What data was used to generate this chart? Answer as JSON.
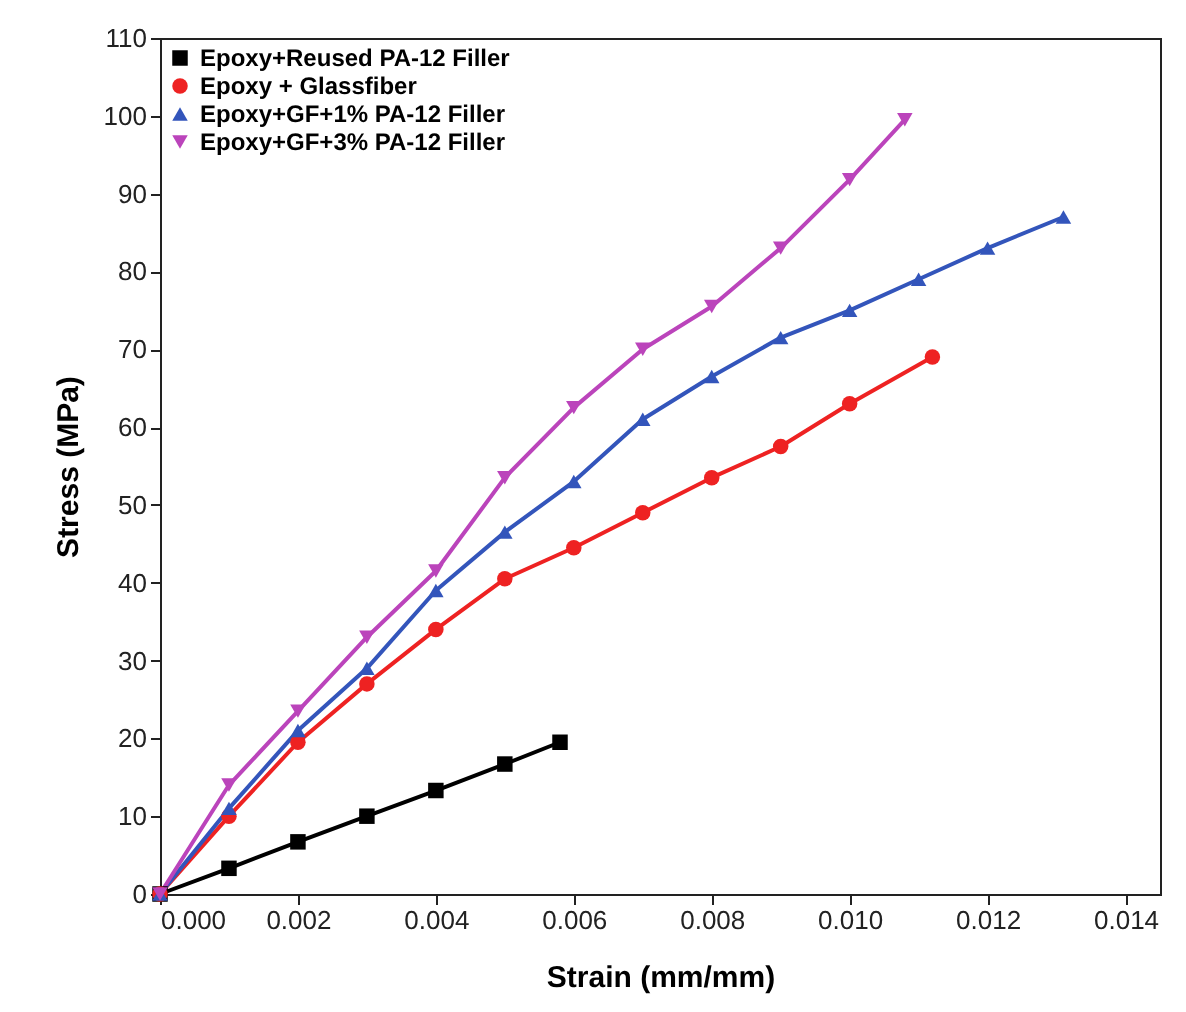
{
  "chart_data": {
    "type": "line",
    "xlabel": "Strain (mm/mm)",
    "ylabel": "Stress (MPa)",
    "xlim": [
      0,
      0.0145
    ],
    "ylim": [
      0,
      110
    ],
    "xticks": [
      {
        "value": 0,
        "label": "0.000"
      },
      {
        "value": 0.002,
        "label": "0.002"
      },
      {
        "value": 0.004,
        "label": "0.004"
      },
      {
        "value": 0.006,
        "label": "0.006"
      },
      {
        "value": 0.008,
        "label": "0.008"
      },
      {
        "value": 0.01,
        "label": "0.010"
      },
      {
        "value": 0.012,
        "label": "0.012"
      },
      {
        "value": 0.014,
        "label": "0.014"
      }
    ],
    "yticks": [
      0,
      10,
      20,
      30,
      40,
      50,
      60,
      70,
      80,
      90,
      100,
      110
    ],
    "grid": false,
    "legend": "top left",
    "series": [
      {
        "name": "Epoxy+Reused PA-12 Filler",
        "color": "#000000",
        "marker": "square",
        "x": [
          0,
          0.001,
          0.002,
          0.003,
          0.004,
          0.005,
          0.0058
        ],
        "values": [
          0,
          3.3,
          6.7,
          10,
          13.3,
          16.7,
          19.5
        ]
      },
      {
        "name": "Epoxy + Glassfiber",
        "color": "#ee2222",
        "marker": "circle",
        "x": [
          0,
          0.001,
          0.002,
          0.003,
          0.004,
          0.005,
          0.006,
          0.007,
          0.008,
          0.009,
          0.01,
          0.0112
        ],
        "values": [
          0,
          10,
          19.5,
          27,
          34,
          40.5,
          44.5,
          49,
          53.5,
          57.5,
          63,
          69
        ]
      },
      {
        "name": "Epoxy+GF+1% PA-12 Filler",
        "color": "#3355bb",
        "marker": "triangle",
        "x": [
          0,
          0.001,
          0.002,
          0.003,
          0.004,
          0.005,
          0.006,
          0.007,
          0.008,
          0.009,
          0.01,
          0.011,
          0.012,
          0.0131
        ],
        "values": [
          0,
          11,
          21,
          29,
          39,
          46.5,
          53,
          61,
          66.5,
          71.5,
          75,
          79,
          83,
          87
        ]
      },
      {
        "name": "Epoxy+GF+3% PA-12 Filler",
        "color": "#bb44bb",
        "marker": "triangle-down",
        "x": [
          0,
          0.001,
          0.002,
          0.003,
          0.004,
          0.005,
          0.006,
          0.007,
          0.008,
          0.009,
          0.01,
          0.0108
        ],
        "values": [
          0,
          14,
          23.5,
          33,
          41.5,
          53.5,
          62.5,
          70,
          75.5,
          83,
          91.8,
          99.5
        ]
      }
    ]
  }
}
